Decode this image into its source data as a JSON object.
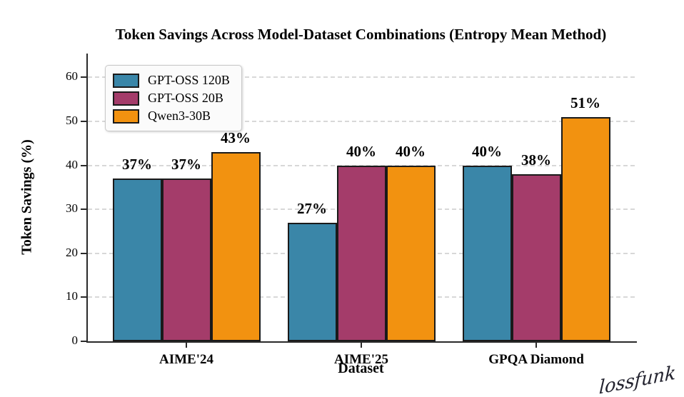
{
  "signature": "lossfunk",
  "chart_data": {
    "type": "bar",
    "title": "Token Savings Across Model-Dataset Combinations (Entropy Mean Method)",
    "xlabel": "Dataset",
    "ylabel": "Token Savings (%)",
    "categories": [
      "AIME'24",
      "AIME'25",
      "GPQA Diamond"
    ],
    "series": [
      {
        "name": "GPT-OSS 120B",
        "color": "#3A86A8",
        "values": [
          37,
          27,
          40
        ]
      },
      {
        "name": "GPT-OSS 20B",
        "color": "#A43C6A",
        "values": [
          37,
          40,
          38
        ]
      },
      {
        "name": "Qwen3-30B",
        "color": "#F29210",
        "values": [
          43,
          40,
          51
        ]
      }
    ],
    "value_label_suffix": "%",
    "yticks": [
      0,
      10,
      20,
      30,
      40,
      50,
      60
    ],
    "ylim": [
      0,
      65.4
    ],
    "grid": "horizontal-dashed",
    "grid_color": "#D8D8D8",
    "axis_color": "#2A2A2A",
    "bar_edge_color": "#1A1A1A",
    "legend_position": "upper-left",
    "background": "#FFFFFF"
  }
}
